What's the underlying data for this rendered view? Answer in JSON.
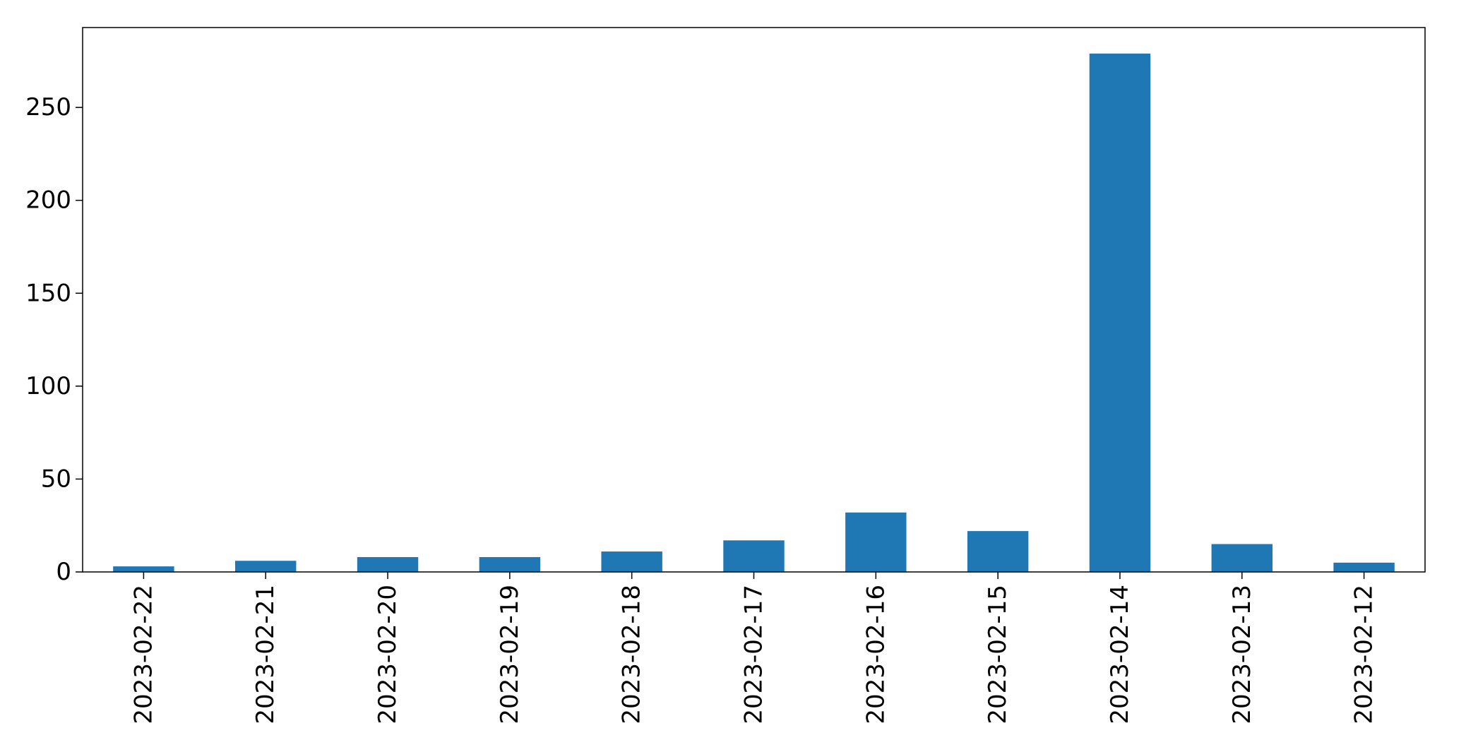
{
  "chart_data": {
    "type": "bar",
    "title": "",
    "xlabel": "",
    "ylabel": "",
    "categories": [
      "2023-02-22",
      "2023-02-21",
      "2023-02-20",
      "2023-02-19",
      "2023-02-18",
      "2023-02-17",
      "2023-02-16",
      "2023-02-15",
      "2023-02-14",
      "2023-02-13",
      "2023-02-12"
    ],
    "values": [
      3,
      6,
      8,
      8,
      11,
      17,
      32,
      22,
      279,
      15,
      5
    ],
    "ylim": [
      0,
      293
    ],
    "yticks": [
      0,
      50,
      100,
      150,
      200,
      250
    ],
    "grid": false,
    "legend": "none",
    "bar_color": "#1f77b4",
    "axis_color": "#000000"
  }
}
